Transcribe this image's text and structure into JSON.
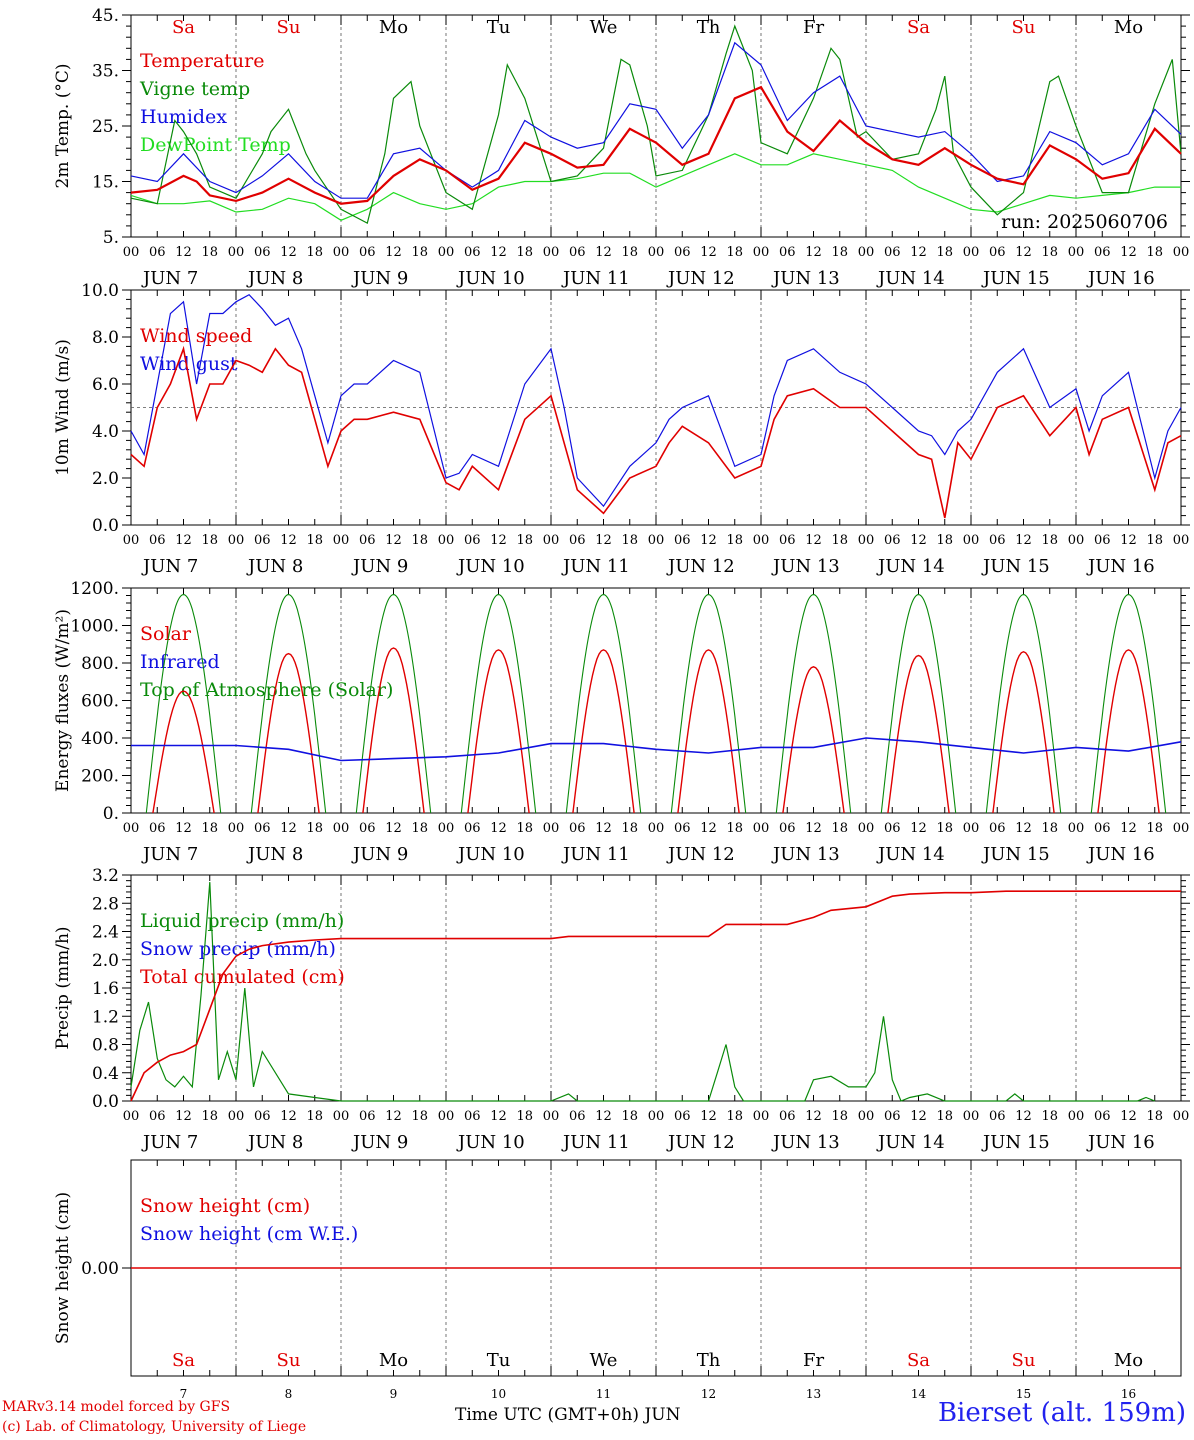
{
  "colors": {
    "red": "#e00000",
    "green": "#0a8a0a",
    "blue": "#1010e0",
    "lightgreen": "#22dd22",
    "axis": "#000000",
    "grid": "#555555"
  },
  "days": {
    "names": [
      "Sa",
      "Su",
      "Mo",
      "Tu",
      "We",
      "Th",
      "Fr",
      "Sa",
      "Su",
      "Mo"
    ],
    "weekend": [
      true,
      true,
      false,
      false,
      false,
      false,
      false,
      true,
      true,
      false
    ],
    "dates": [
      "7",
      "8",
      "9",
      "10",
      "11",
      "12",
      "13",
      "14",
      "15",
      "16"
    ],
    "date_labels": [
      "JUN  7",
      "JUN  8",
      "JUN  9",
      "JUN 10",
      "JUN 11",
      "JUN 12",
      "JUN 13",
      "JUN 14",
      "JUN 15",
      "JUN 16"
    ],
    "hour_ticks": [
      "00",
      "06",
      "12",
      "18"
    ],
    "end_tick": "00"
  },
  "footer": {
    "credit_line1": "MARv3.14 model forced by GFS",
    "credit_line2": "(c) Lab. of Climatology, University of Liege",
    "xaxis_title": "Time UTC (GMT+0h) JUN",
    "station": "Bierset (alt. 159m)"
  },
  "chart_data": [
    {
      "type": "line",
      "ylabel": "2m Temp. (°C)",
      "ylim": [
        5,
        45
      ],
      "yticks": [
        "5.",
        "15.",
        "25.",
        "35.",
        "45."
      ],
      "annotation": "run: 2025060706",
      "x_unit": "hours since 2025-06-07 00 UTC",
      "series": [
        {
          "name": "Temperature",
          "color": "red",
          "x": [
            0,
            6,
            12,
            15,
            18,
            24,
            30,
            36,
            42,
            48,
            54,
            60,
            66,
            72,
            78,
            84,
            90,
            96,
            102,
            108,
            114,
            120,
            126,
            132,
            138,
            144,
            150,
            156,
            162,
            168,
            174,
            180,
            186,
            192,
            198,
            204,
            210,
            216,
            222,
            228,
            234,
            240
          ],
          "y": [
            13,
            13.5,
            16,
            15,
            12.5,
            11.5,
            13,
            15.5,
            13,
            11,
            11.5,
            16,
            19,
            17,
            13.5,
            15.5,
            22,
            20,
            17.5,
            18,
            24.5,
            22,
            18,
            20,
            30,
            32,
            24,
            20.5,
            26,
            22,
            19,
            18,
            21,
            18,
            15.5,
            14.5,
            21.5,
            19,
            15.5,
            16.5,
            24.5,
            20
          ]
        },
        {
          "name": "Vigne temp",
          "color": "green",
          "x": [
            0,
            6,
            10,
            12,
            15,
            18,
            24,
            30,
            32,
            36,
            40,
            42,
            48,
            54,
            58,
            60,
            64,
            66,
            72,
            78,
            84,
            86,
            90,
            96,
            102,
            108,
            112,
            114,
            118,
            120,
            126,
            132,
            136,
            138,
            142,
            144,
            150,
            156,
            160,
            162,
            166,
            168,
            174,
            180,
            184,
            186,
            188,
            192,
            198,
            204,
            210,
            212,
            216,
            222,
            228,
            234,
            238,
            240
          ],
          "y": [
            12,
            11,
            26,
            24,
            20,
            14,
            12,
            20,
            24,
            28,
            20,
            17,
            10,
            7.5,
            20,
            30,
            33,
            25,
            13,
            10,
            27,
            36,
            30,
            15,
            16,
            21,
            37,
            36,
            25,
            16,
            17,
            27,
            38,
            43,
            35,
            22,
            20,
            30,
            39,
            37,
            23,
            24,
            19,
            20,
            28,
            34,
            20,
            14,
            9,
            13,
            33,
            34,
            25,
            13,
            13,
            29,
            37,
            20
          ]
        },
        {
          "name": "Humidex",
          "color": "blue",
          "x": [
            0,
            6,
            12,
            18,
            24,
            30,
            36,
            42,
            48,
            54,
            60,
            66,
            72,
            78,
            84,
            90,
            96,
            102,
            108,
            114,
            120,
            126,
            132,
            138,
            144,
            150,
            156,
            162,
            168,
            174,
            180,
            186,
            192,
            198,
            204,
            210,
            216,
            222,
            228,
            234,
            240
          ],
          "y": [
            16,
            15,
            20,
            15,
            13,
            16,
            20,
            15,
            12,
            12,
            20,
            21,
            17,
            14,
            17,
            26,
            23,
            21,
            22,
            29,
            28,
            21,
            27,
            40,
            36,
            26,
            31,
            34,
            25,
            24,
            23,
            24,
            20,
            15,
            16,
            24,
            22,
            18,
            20,
            28,
            23.5
          ]
        },
        {
          "name": "DewPoint Temp",
          "color": "lightgreen",
          "x": [
            0,
            6,
            12,
            18,
            24,
            30,
            36,
            42,
            48,
            54,
            60,
            66,
            72,
            78,
            84,
            90,
            96,
            102,
            108,
            114,
            120,
            126,
            132,
            138,
            144,
            150,
            156,
            162,
            168,
            174,
            180,
            186,
            192,
            198,
            204,
            210,
            216,
            222,
            228,
            234,
            240
          ],
          "y": [
            12.5,
            11,
            11,
            11.5,
            9.5,
            10,
            12,
            11,
            8,
            10,
            13,
            11,
            10,
            11,
            14,
            15,
            15,
            15.5,
            16.5,
            16.5,
            14,
            16,
            18,
            20,
            18,
            18,
            20,
            19,
            18,
            17,
            14,
            12,
            10,
            9.5,
            11,
            12.5,
            12,
            12.5,
            13,
            14,
            14
          ]
        }
      ]
    },
    {
      "type": "line",
      "ylabel": "10m Wind (m/s)",
      "ylim": [
        0,
        10
      ],
      "yticks": [
        "0.0",
        "2.0",
        "4.0",
        "6.0",
        "8.0",
        "10.0"
      ],
      "reference_line": 5,
      "x_unit": "hours since 2025-06-07 00 UTC",
      "series": [
        {
          "name": "Wind speed",
          "color": "red",
          "x": [
            0,
            3,
            6,
            9,
            12,
            15,
            18,
            21,
            24,
            27,
            30,
            33,
            36,
            39,
            42,
            45,
            48,
            51,
            54,
            60,
            66,
            72,
            75,
            78,
            84,
            90,
            96,
            99,
            102,
            108,
            114,
            120,
            123,
            126,
            132,
            138,
            144,
            147,
            150,
            156,
            162,
            168,
            174,
            180,
            183,
            186,
            189,
            192,
            198,
            204,
            210,
            216,
            219,
            222,
            228,
            234,
            237,
            240
          ],
          "y": [
            3,
            2.5,
            5,
            6,
            7.5,
            4.5,
            6,
            6,
            7,
            6.8,
            6.5,
            7.5,
            6.8,
            6.5,
            4.5,
            2.5,
            4,
            4.5,
            4.5,
            4.8,
            4.5,
            1.8,
            1.5,
            2.5,
            1.5,
            4.5,
            5.5,
            3.5,
            1.5,
            0.5,
            2,
            2.5,
            3.5,
            4.2,
            3.5,
            2,
            2.5,
            4.5,
            5.5,
            5.8,
            5,
            5,
            4,
            3,
            2.8,
            0.3,
            3.5,
            2.8,
            5,
            5.5,
            3.8,
            5,
            3,
            4.5,
            5,
            1.5,
            3.5,
            3.8
          ]
        },
        {
          "name": "Wind gust",
          "color": "blue",
          "x": [
            0,
            3,
            6,
            9,
            12,
            15,
            18,
            21,
            24,
            27,
            30,
            33,
            36,
            39,
            42,
            45,
            48,
            51,
            54,
            60,
            66,
            72,
            75,
            78,
            84,
            90,
            96,
            99,
            102,
            108,
            114,
            120,
            123,
            126,
            132,
            138,
            144,
            147,
            150,
            156,
            162,
            168,
            174,
            180,
            183,
            186,
            189,
            192,
            198,
            204,
            210,
            216,
            219,
            222,
            228,
            234,
            237,
            240
          ],
          "y": [
            4,
            3,
            6,
            9,
            9.5,
            6,
            9,
            9,
            9.5,
            9.8,
            9.2,
            8.5,
            8.8,
            7.5,
            5.5,
            3.5,
            5.5,
            6,
            6,
            7,
            6.5,
            2,
            2.2,
            3,
            2.5,
            6,
            7.5,
            5,
            2,
            0.8,
            2.5,
            3.5,
            4.5,
            5,
            5.5,
            2.5,
            3,
            5.5,
            7,
            7.5,
            6.5,
            6,
            5,
            4,
            3.8,
            3,
            4,
            4.5,
            6.5,
            7.5,
            5,
            5.8,
            4,
            5.5,
            6.5,
            2,
            4,
            5
          ]
        }
      ]
    },
    {
      "type": "line",
      "ylabel": "Energy fluxes (W/m²)",
      "ylim": [
        0,
        1200
      ],
      "yticks": [
        "0.",
        "200.",
        "400.",
        "600.",
        "800.",
        "1000.",
        "1200."
      ],
      "x_unit": "hours since 2025-06-07 00 UTC",
      "series": [
        {
          "name": "Solar",
          "color": "red",
          "solar_peaks": [
            650,
            850,
            880,
            870,
            870,
            870,
            780,
            840,
            860,
            870
          ]
        },
        {
          "name": "Infrared",
          "color": "blue",
          "x": [
            0,
            12,
            24,
            36,
            48,
            60,
            72,
            84,
            96,
            108,
            120,
            132,
            144,
            156,
            168,
            180,
            192,
            204,
            216,
            228,
            240
          ],
          "y": [
            360,
            360,
            360,
            340,
            280,
            290,
            300,
            320,
            370,
            370,
            340,
            320,
            350,
            350,
            400,
            380,
            350,
            320,
            350,
            330,
            380
          ]
        },
        {
          "name": "Top of Atmosphere (Solar)",
          "color": "green",
          "daily_peak": 1165
        }
      ]
    },
    {
      "type": "line",
      "ylabel": "Precip (mm/h)",
      "ylim": [
        0,
        3.2
      ],
      "yticks": [
        "0.0",
        "0.4",
        "0.8",
        "1.2",
        "1.6",
        "2.0",
        "2.4",
        "2.8",
        "3.2"
      ],
      "x_unit": "hours since 2025-06-07 00 UTC",
      "series": [
        {
          "name": "Liquid precip (mm/h)",
          "color": "green",
          "x": [
            0,
            2,
            4,
            6,
            8,
            10,
            12,
            14,
            16,
            18,
            20,
            22,
            24,
            26,
            28,
            30,
            36,
            42,
            48,
            96,
            100,
            102,
            132,
            134,
            136,
            138,
            140,
            154,
            156,
            160,
            164,
            168,
            170,
            172,
            174,
            176,
            178,
            182,
            186,
            200,
            202,
            204,
            230,
            232,
            234
          ],
          "y": [
            0.2,
            1,
            1.4,
            0.6,
            0.3,
            0.2,
            0.35,
            0.2,
            1.5,
            3.1,
            0.3,
            0.7,
            0.3,
            1.6,
            0.2,
            0.7,
            0.1,
            0.05,
            0,
            0,
            0.1,
            0,
            0,
            0.4,
            0.8,
            0.2,
            0,
            0,
            0.3,
            0.35,
            0.2,
            0.2,
            0.4,
            1.2,
            0.3,
            0,
            0.05,
            0.1,
            0,
            0,
            0.1,
            0,
            0,
            0.05,
            0
          ]
        },
        {
          "name": "Snow precip (mm/h)",
          "color": "blue",
          "x": [],
          "y": []
        },
        {
          "name": "Total cumulated (cm)",
          "color": "red",
          "x": [
            0,
            3,
            6,
            9,
            12,
            15,
            18,
            21,
            24,
            27,
            30,
            36,
            42,
            48,
            96,
            100,
            132,
            136,
            150,
            156,
            160,
            168,
            174,
            178,
            186,
            192,
            200,
            240
          ],
          "y": [
            0,
            0.4,
            0.55,
            0.65,
            0.7,
            0.8,
            1.3,
            1.8,
            2.05,
            2.15,
            2.2,
            2.25,
            2.28,
            2.3,
            2.3,
            2.33,
            2.33,
            2.5,
            2.5,
            2.6,
            2.7,
            2.75,
            2.9,
            2.93,
            2.95,
            2.95,
            2.97,
            2.97
          ]
        }
      ]
    },
    {
      "type": "line",
      "ylabel": "Snow height (cm)",
      "ylim": [
        -1,
        1
      ],
      "yticks": [
        "0.00"
      ],
      "x_unit": "hours since 2025-06-07 00 UTC",
      "series": [
        {
          "name": "Snow height (cm)",
          "color": "red",
          "x": [
            0,
            240
          ],
          "y": [
            0,
            0
          ]
        },
        {
          "name": "Snow height (cm W.E.)",
          "color": "blue",
          "x": [],
          "y": []
        }
      ]
    }
  ]
}
